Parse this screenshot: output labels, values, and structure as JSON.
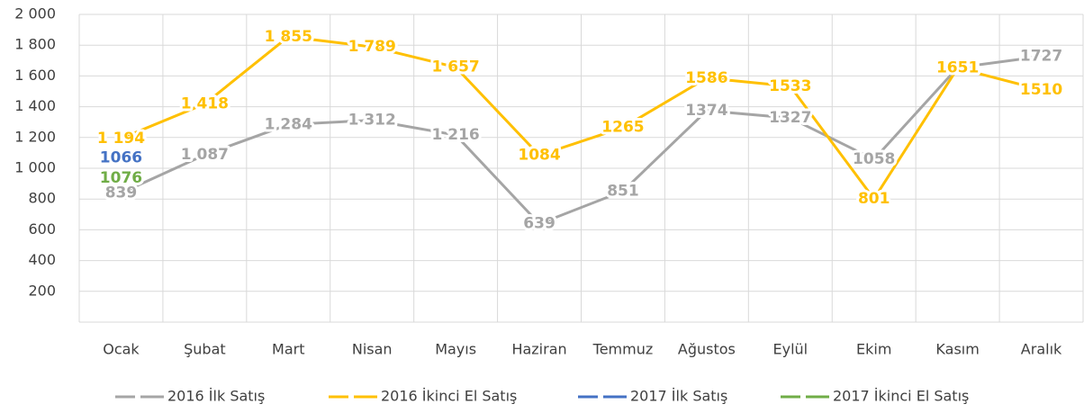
{
  "chart_data": {
    "type": "line",
    "categories": [
      "Ocak",
      "Şubat",
      "Mart",
      "Nisan",
      "Mayıs",
      "Haziran",
      "Temmuz",
      "Ağustos",
      "Eylül",
      "Ekim",
      "Kasım",
      "Aralık"
    ],
    "series": [
      {
        "name": "2016 İlk Satış",
        "color": "#a5a5a5",
        "values": [
          839,
          1087,
          1284,
          1312,
          1216,
          639,
          851,
          1374,
          1327,
          1058,
          1654,
          1727
        ],
        "value_labels": [
          "839",
          "1 087",
          "1 284",
          "1 312",
          "1 216",
          "639",
          "851",
          "1374",
          "1327",
          "1058",
          "1654",
          "1727"
        ]
      },
      {
        "name": "2016 İkinci El Satış",
        "color": "#ffc000",
        "values": [
          1194,
          1418,
          1855,
          1789,
          1657,
          1084,
          1265,
          1586,
          1533,
          801,
          1651,
          1510
        ],
        "value_labels": [
          "1 194",
          "1 418",
          "1 855",
          "1 789",
          "1 657",
          "1084",
          "1265",
          "1586",
          "1533",
          "801",
          "1651",
          "1510"
        ]
      },
      {
        "name": "2017 İlk Satış",
        "color": "#4472c4",
        "values": [
          1066,
          null,
          null,
          null,
          null,
          null,
          null,
          null,
          null,
          null,
          null,
          null
        ],
        "value_labels": [
          "1066",
          null,
          null,
          null,
          null,
          null,
          null,
          null,
          null,
          null,
          null,
          null
        ]
      },
      {
        "name": "2017 İkinci El Satış",
        "color": "#70ad47",
        "values": [
          1076,
          null,
          null,
          null,
          null,
          null,
          null,
          null,
          null,
          null,
          null,
          null
        ],
        "value_labels": [
          "1076",
          null,
          null,
          null,
          null,
          null,
          null,
          null,
          null,
          null,
          null,
          null
        ]
      }
    ],
    "ylim": [
      0,
      2000
    ],
    "yticks": [
      200,
      400,
      600,
      800,
      {
        "value": 1000,
        "label": "1 000"
      },
      {
        "value": 1200,
        "label": "1 200"
      },
      {
        "value": 1400,
        "label": "1 400"
      },
      {
        "value": 1600,
        "label": "1 600"
      },
      {
        "value": 1800,
        "label": "1 800"
      },
      {
        "value": 2000,
        "label": "2 000"
      }
    ],
    "grid": true,
    "legend": "bottom"
  }
}
